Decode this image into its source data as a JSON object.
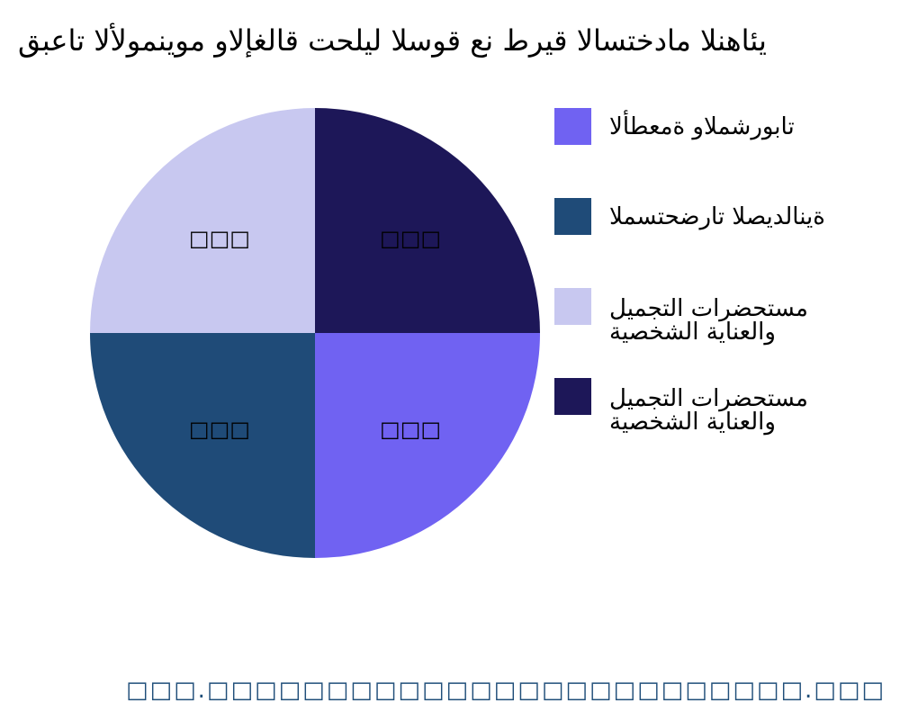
{
  "chart_data": {
    "type": "pie",
    "title": "قبعات الألومنيوم والإغلاق تحليل السوق عن طريق الاستخدام النهائي",
    "slices": [
      {
        "name": "الأطعمة والمشروبات",
        "value": 25,
        "label": "□□□",
        "color": "#7062f2"
      },
      {
        "name": "المستحضرات الصيدلانية",
        "value": 25,
        "label": "□□□",
        "color": "#1f4b78"
      },
      {
        "name": "مستحضرات التجميل والعناية الشخصية",
        "value": 25,
        "label": "□□□",
        "color": "#c8c8f0"
      },
      {
        "name": "مستحضرات التجميل والعناية الشخصية",
        "value": 25,
        "label": "□□□",
        "color": "#1d1758"
      }
    ],
    "legend_position": "right"
  },
  "legend": [
    {
      "line1": "الأطعمة والمشروبات",
      "line2": ""
    },
    {
      "line1": "المستحضرات الصيدلانية",
      "line2": ""
    },
    {
      "line1": "مستحضرات التجميل",
      "line2": "والعناية الشخصية"
    },
    {
      "line1": "مستحضرات التجميل",
      "line2": "والعناية الشخصية"
    }
  ],
  "footer": "□□□.□□□□□□□□□□□□□□□□□□□□□□□□□.□□□"
}
